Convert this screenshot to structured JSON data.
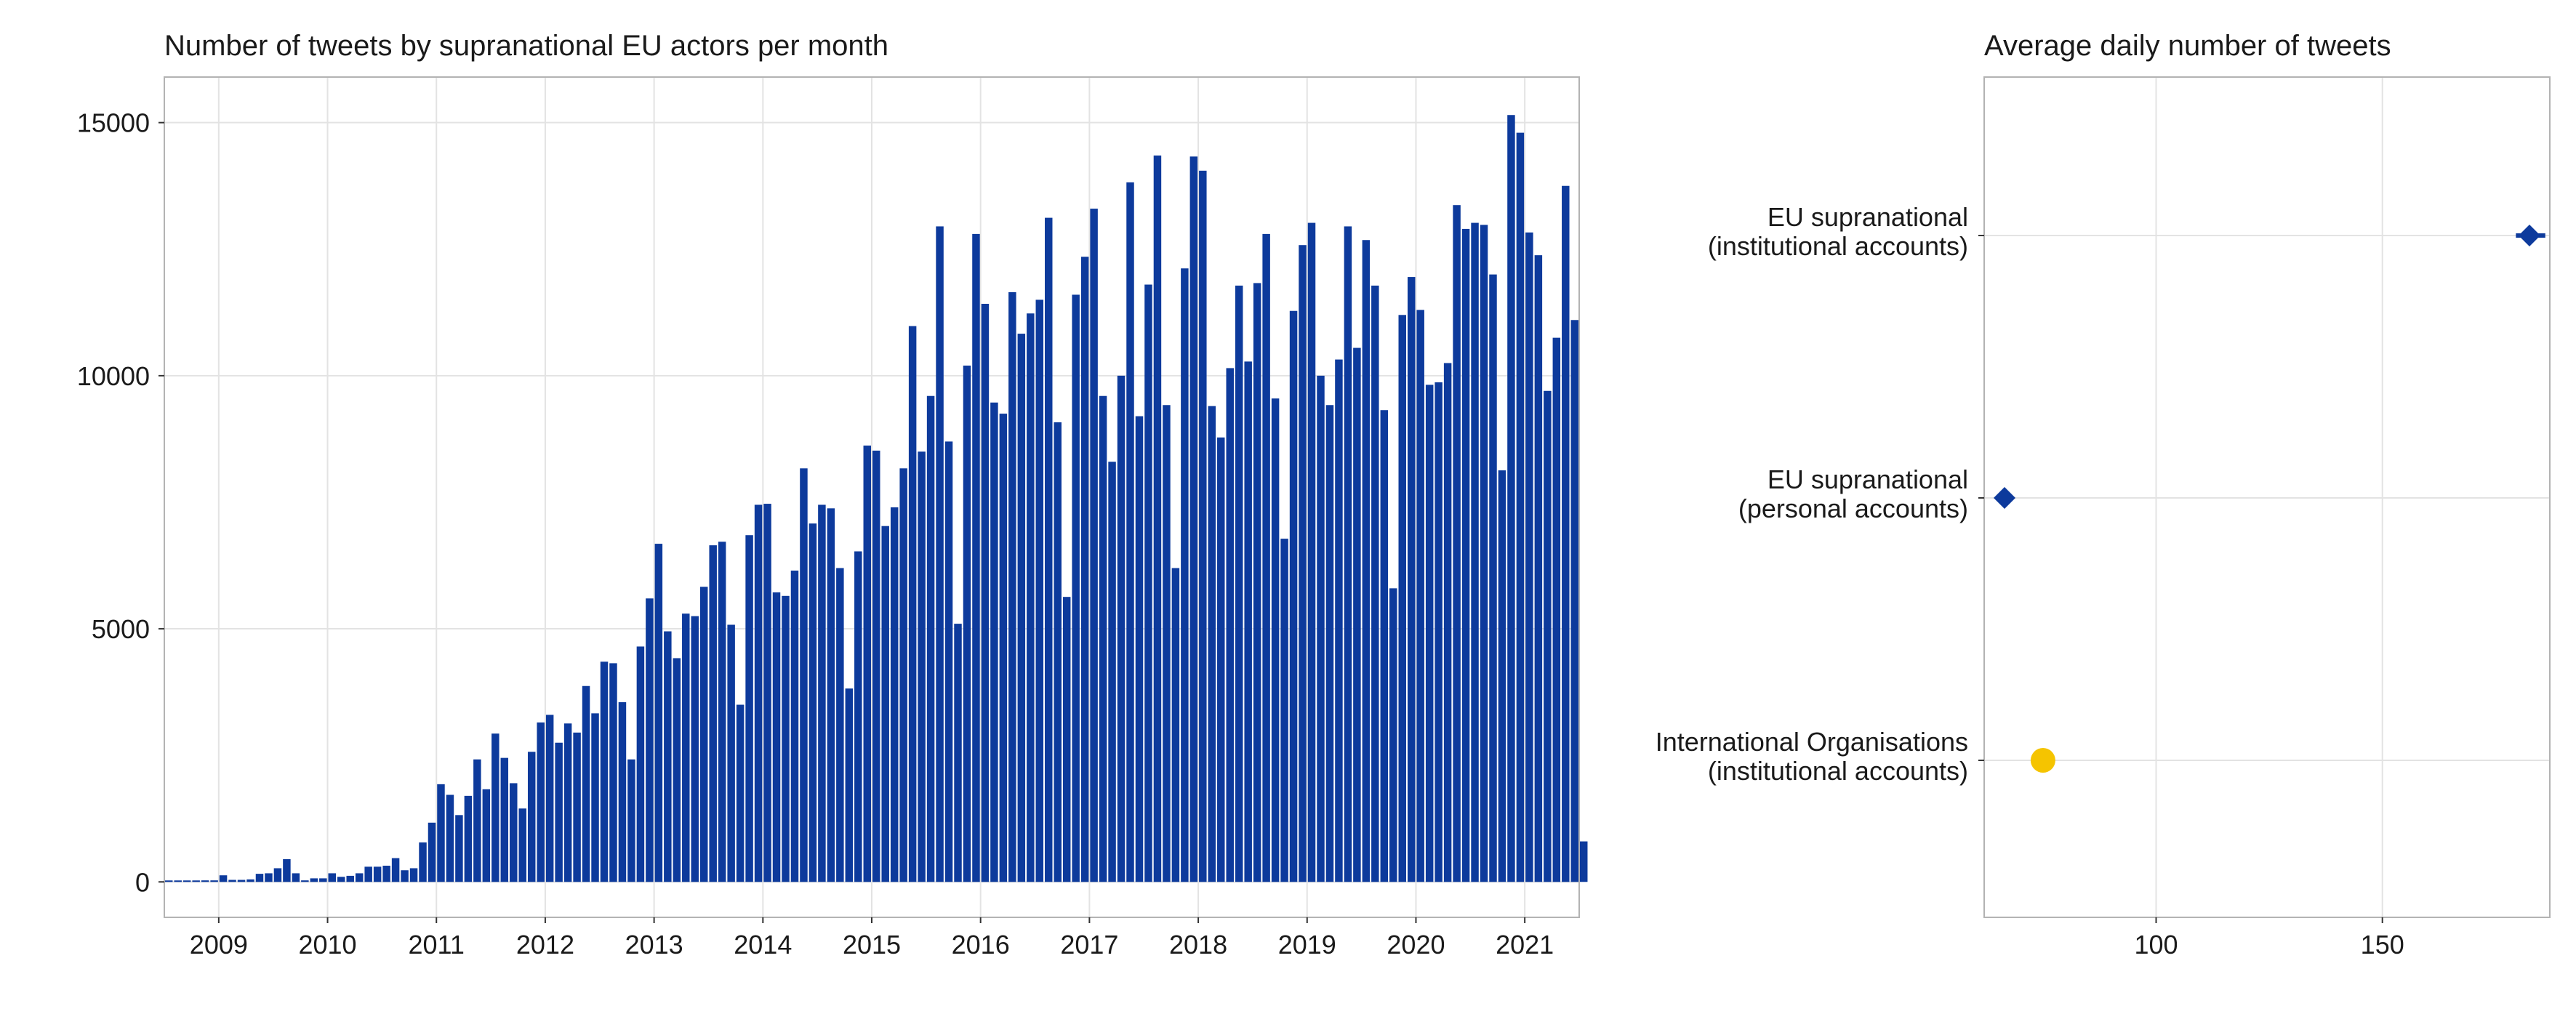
{
  "colors": {
    "bar": "#0d3a9c",
    "eu": "#0d3a9c",
    "io": "#f5c400",
    "grid": "#e3e3e3",
    "frame": "#b3b3b3",
    "text": "#1a1a1a"
  },
  "chart_data": [
    {
      "type": "bar",
      "title": "Number of tweets by supranational EU actors per month",
      "xlabel": "",
      "ylabel": "",
      "x_start": "2008-07",
      "x_end": "2021-06",
      "xlim": [
        "2008-07",
        "2021-07"
      ],
      "ylim": [
        -700,
        15900
      ],
      "yticks": [
        0,
        5000,
        10000,
        15000
      ],
      "xticks": [
        "2009",
        "2010",
        "2011",
        "2012",
        "2013",
        "2014",
        "2015",
        "2016",
        "2017",
        "2018",
        "2019",
        "2020",
        "2021"
      ],
      "grid": true,
      "values": [
        20,
        20,
        20,
        20,
        30,
        30,
        130,
        40,
        40,
        50,
        160,
        170,
        270,
        450,
        170,
        30,
        70,
        70,
        170,
        100,
        120,
        170,
        300,
        300,
        320,
        470,
        230,
        270,
        780,
        1170,
        1930,
        1720,
        1320,
        1700,
        2420,
        1830,
        2930,
        2450,
        1950,
        1450,
        2570,
        3150,
        3300,
        2750,
        3130,
        2950,
        3870,
        3330,
        4350,
        4320,
        3550,
        2420,
        4650,
        5600,
        6680,
        4950,
        4420,
        5300,
        5250,
        5830,
        6650,
        6720,
        5080,
        3500,
        6850,
        7450,
        7470,
        5720,
        5650,
        6150,
        8170,
        7080,
        7450,
        7380,
        6200,
        3820,
        6530,
        8620,
        8520,
        7030,
        7400,
        8170,
        10980,
        8500,
        9600,
        12950,
        8700,
        5100,
        10200,
        12800,
        11420,
        9470,
        9250,
        11650,
        10830,
        11230,
        11500,
        13120,
        9080,
        5630,
        11600,
        12350,
        13300,
        9600,
        8300,
        10000,
        13820,
        9200,
        11800,
        14350,
        9420,
        6200,
        12120,
        14330,
        14050,
        9400,
        8780,
        10150,
        11780,
        10280,
        11830,
        12800,
        9550,
        6780,
        11280,
        12580,
        13020,
        10000,
        9420,
        10320,
        12950,
        10550,
        12680,
        11780,
        9320,
        5800,
        11200,
        11950,
        11300,
        9820,
        9870,
        10250,
        13370,
        12900,
        13020,
        12980,
        12000,
        8130,
        15150,
        14800,
        12830,
        12380,
        9700,
        10750,
        13750,
        11100,
        800
      ]
    },
    {
      "type": "scatter",
      "title": "Average daily number of tweets",
      "xlabel": "",
      "ylabel": "",
      "xlim": [
        62,
        187
      ],
      "xticks": [
        100,
        150
      ],
      "grid": true,
      "categories": [
        "EU supranational\n(institutional accounts)",
        "EU supranational\n(personal accounts)",
        "International Organisations\n(institutional accounts)"
      ],
      "points": [
        {
          "category": "EU supranational\n(institutional accounts)",
          "value": 182.5,
          "interval": [
            179.5,
            186.0
          ],
          "marker": "diamond",
          "color": "#0d3a9c"
        },
        {
          "category": "EU supranational\n(personal accounts)",
          "value": 66.5,
          "interval": null,
          "marker": "diamond",
          "color": "#0d3a9c"
        },
        {
          "category": "International Organisations\n(institutional accounts)",
          "value": 75.0,
          "interval": null,
          "marker": "circle",
          "color": "#f5c400"
        }
      ]
    }
  ]
}
